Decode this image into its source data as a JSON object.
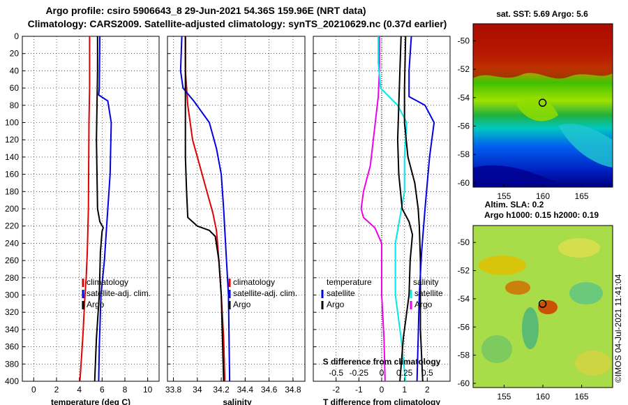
{
  "title": {
    "line1": "Argo profile: csiro 5906643_8 29-Jun-2021 54.36S 159.96E (NRT data)",
    "line2": "Climatology: CARS2009. Satellite-adjusted climatology: synTS_20210629.nc (0.37d earlier)"
  },
  "colors": {
    "climatology": "#e00000",
    "satellite": "#0000e0",
    "argo": "#000000",
    "temp_diff": "#ee00ee",
    "sal_diff": "#00e8e8"
  },
  "chart_data": [
    {
      "type": "line",
      "id": "temperature",
      "xlabel": "temperature (deg C)",
      "ylabel": "",
      "xlim": [
        -1,
        11
      ],
      "ylim": [
        0,
        400
      ],
      "y_inverted": true,
      "xticks": [
        0,
        2,
        4,
        6,
        8,
        10
      ],
      "yticks": [
        0,
        20,
        40,
        60,
        80,
        100,
        120,
        140,
        160,
        180,
        200,
        220,
        240,
        260,
        280,
        300,
        320,
        340,
        360,
        380,
        400
      ],
      "grid": true,
      "legend": {
        "position": "bottom-right",
        "entries": [
          "climatology",
          "satellite-adj. clim.",
          "Argo"
        ]
      },
      "series": [
        {
          "name": "climatology",
          "color": "#e00000",
          "points": [
            [
              4.9,
              0
            ],
            [
              4.9,
              60
            ],
            [
              4.85,
              100
            ],
            [
              4.8,
              200
            ],
            [
              4.7,
              250
            ],
            [
              4.6,
              280
            ],
            [
              4.5,
              300
            ],
            [
              4.3,
              350
            ],
            [
              4.05,
              400
            ]
          ]
        },
        {
          "name": "satellite-adj. clim.",
          "color": "#0000e0",
          "points": [
            [
              5.8,
              0
            ],
            [
              5.75,
              60
            ],
            [
              5.7,
              68
            ],
            [
              6.5,
              75
            ],
            [
              6.8,
              100
            ],
            [
              6.7,
              160
            ],
            [
              6.5,
              200
            ],
            [
              6.2,
              260
            ],
            [
              5.9,
              300
            ],
            [
              5.75,
              360
            ],
            [
              5.7,
              400
            ]
          ]
        },
        {
          "name": "Argo",
          "color": "#000000",
          "points": [
            [
              5.6,
              0
            ],
            [
              5.6,
              40
            ],
            [
              5.55,
              80
            ],
            [
              5.5,
              120
            ],
            [
              5.55,
              160
            ],
            [
              5.6,
              200
            ],
            [
              5.8,
              215
            ],
            [
              6.1,
              222
            ],
            [
              6.0,
              226
            ],
            [
              5.85,
              250
            ],
            [
              5.75,
              300
            ],
            [
              5.5,
              350
            ],
            [
              5.35,
              400
            ]
          ]
        }
      ]
    },
    {
      "type": "line",
      "id": "salinity",
      "xlabel": "salinity",
      "ylabel": "",
      "xlim": [
        33.75,
        34.9
      ],
      "ylim": [
        0,
        400
      ],
      "y_inverted": true,
      "xticks": [
        33.8,
        34,
        34.2,
        34.4,
        34.6,
        34.8
      ],
      "grid": true,
      "legend": {
        "position": "bottom-right",
        "entries": [
          "climatology",
          "satellite-adj. clim.",
          "Argo"
        ]
      },
      "series": [
        {
          "name": "climatology",
          "color": "#e00000",
          "points": [
            [
              33.9,
              0
            ],
            [
              33.9,
              40
            ],
            [
              33.92,
              80
            ],
            [
              33.96,
              120
            ],
            [
              34.02,
              150
            ],
            [
              34.08,
              180
            ],
            [
              34.13,
              205
            ],
            [
              34.16,
              225
            ],
            [
              34.18,
              260
            ],
            [
              34.2,
              300
            ],
            [
              34.22,
              350
            ],
            [
              34.23,
              400
            ]
          ]
        },
        {
          "name": "satellite-adj. clim.",
          "color": "#0000e0",
          "points": [
            [
              33.87,
              0
            ],
            [
              33.86,
              40
            ],
            [
              33.88,
              60
            ],
            [
              33.97,
              75
            ],
            [
              34.1,
              100
            ],
            [
              34.16,
              130
            ],
            [
              34.2,
              160
            ],
            [
              34.22,
              200
            ],
            [
              34.24,
              250
            ],
            [
              34.26,
              300
            ],
            [
              34.27,
              400
            ]
          ]
        },
        {
          "name": "Argo",
          "color": "#000000",
          "points": [
            [
              33.9,
              0
            ],
            [
              33.9,
              100
            ],
            [
              33.9,
              140
            ],
            [
              33.91,
              180
            ],
            [
              33.92,
              210
            ],
            [
              34.0,
              220
            ],
            [
              34.1,
              225
            ],
            [
              34.15,
              232
            ],
            [
              34.18,
              260
            ],
            [
              34.2,
              300
            ],
            [
              34.21,
              350
            ],
            [
              34.22,
              400
            ]
          ]
        }
      ]
    },
    {
      "type": "line",
      "id": "difference",
      "xlabel": "T difference from climatology",
      "xlabel_top": "S difference from climatology",
      "xlim": [
        -3,
        3
      ],
      "ylim": [
        0,
        400
      ],
      "y_inverted": true,
      "xticks": [
        -2,
        -1,
        0,
        1,
        2
      ],
      "s_ticks": [
        "-0.5",
        "-0.25",
        "0",
        "0.25",
        "0.5"
      ],
      "grid": true,
      "legend": {
        "position": "bottom",
        "left_title": "temperature",
        "right_title": "salinity",
        "entries": [
          "satellite",
          "Argo"
        ]
      },
      "series": [
        {
          "name": "temperature satellite",
          "color": "#ee00ee",
          "points": [
            [
              -0.1,
              0
            ],
            [
              -0.1,
              40
            ],
            [
              -0.15,
              70
            ],
            [
              -0.5,
              150
            ],
            [
              -0.8,
              180
            ],
            [
              -0.9,
              200
            ],
            [
              -0.8,
              210
            ],
            [
              -0.3,
              222
            ],
            [
              0.0,
              240
            ],
            [
              0.0,
              300
            ],
            [
              0.1,
              350
            ],
            [
              0.15,
              400
            ]
          ]
        },
        {
          "name": "salinity satellite",
          "color": "#00e8e8",
          "points": [
            [
              -0.15,
              0
            ],
            [
              -0.15,
              30
            ],
            [
              -0.05,
              60
            ],
            [
              0.7,
              80
            ],
            [
              1.1,
              100
            ],
            [
              1.0,
              140
            ],
            [
              1.0,
              180
            ],
            [
              0.8,
              210
            ],
            [
              0.6,
              240
            ],
            [
              0.6,
              300
            ],
            [
              0.85,
              350
            ],
            [
              1.05,
              400
            ]
          ]
        },
        {
          "name": "temperature Argo",
          "color": "#000000",
          "points": [
            [
              0.85,
              0
            ],
            [
              0.8,
              40
            ],
            [
              0.75,
              80
            ],
            [
              0.7,
              120
            ],
            [
              0.75,
              160
            ],
            [
              0.9,
              200
            ],
            [
              1.2,
              215
            ],
            [
              1.35,
              230
            ],
            [
              1.25,
              260
            ],
            [
              1.2,
              300
            ],
            [
              0.95,
              350
            ],
            [
              0.8,
              400
            ]
          ]
        },
        {
          "name": "salinity Argo",
          "color": "#000000",
          "points": [
            [
              1.05,
              0
            ],
            [
              1.0,
              60
            ],
            [
              1.0,
              100
            ],
            [
              1.15,
              140
            ],
            [
              1.45,
              170
            ],
            [
              1.6,
              200
            ],
            [
              1.65,
              220
            ],
            [
              1.7,
              260
            ],
            [
              1.7,
              300
            ],
            [
              1.7,
              340
            ],
            [
              1.8,
              400
            ]
          ]
        },
        {
          "name": "Argo trace",
          "color": "#0000e0",
          "points": [
            [
              1.3,
              0
            ],
            [
              1.2,
              40
            ],
            [
              1.2,
              70
            ],
            [
              1.9,
              80
            ],
            [
              2.3,
              100
            ],
            [
              2.1,
              140
            ],
            [
              1.9,
              200
            ],
            [
              1.75,
              250
            ],
            [
              1.65,
              300
            ],
            [
              1.6,
              350
            ],
            [
              1.55,
              400
            ]
          ]
        }
      ]
    },
    {
      "type": "heatmap",
      "id": "sst_map",
      "title": "sat. SST: 5.69 Argo: 5.6",
      "xlim": [
        151,
        169
      ],
      "ylim": [
        -60.3,
        -48.8
      ],
      "xticks": [
        155,
        160,
        165
      ],
      "yticks": [
        -50,
        -52,
        -54,
        -56,
        -58,
        -60
      ],
      "argo_position": [
        159.96,
        -54.36
      ]
    },
    {
      "type": "heatmap",
      "id": "sla_map",
      "title_line1": "Altim. SLA: 0.2",
      "title_line2": "Argo h1000: 0.15 h2000: 0.19",
      "xlim": [
        151,
        169
      ],
      "ylim": [
        -60.3,
        -48.8
      ],
      "xticks": [
        155,
        160,
        165
      ],
      "yticks": [
        -50,
        -52,
        -54,
        -56,
        -58,
        -60
      ],
      "argo_position": [
        159.96,
        -54.36
      ]
    }
  ],
  "legend_labels": {
    "climatology": "climatology",
    "satellite_adj": "satellite-adj. clim.",
    "argo": "Argo",
    "temperature": "temperature",
    "salinity": "salinity",
    "satellite": "satellite"
  },
  "watermark": "©IMOS 04-Jul-2021 11:41:04"
}
